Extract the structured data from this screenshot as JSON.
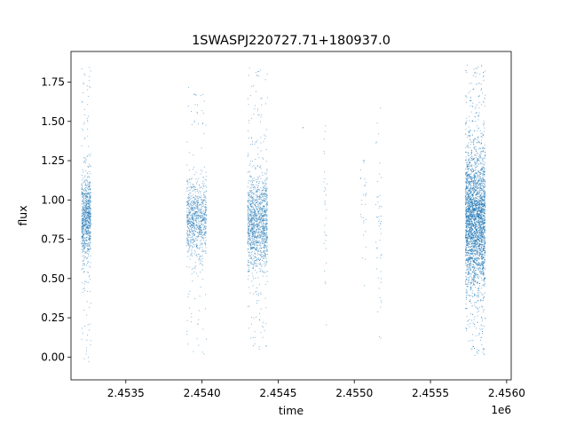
{
  "chart_data": {
    "type": "scatter",
    "title": "1SWASPJ220727.71+180937.0",
    "xlabel": "time",
    "ylabel": "flux",
    "x_offset_label": "1e6",
    "x_tick_labels": [
      "2.4535",
      "2.4540",
      "2.4545",
      "2.4550",
      "2.4555",
      "2.4560"
    ],
    "x_tick_values": [
      2.4535,
      2.454,
      2.4545,
      2.455,
      2.4555,
      2.456
    ],
    "y_tick_labels": [
      "0.00",
      "0.25",
      "0.50",
      "0.75",
      "1.00",
      "1.25",
      "1.50",
      "1.75"
    ],
    "y_tick_values": [
      0.0,
      0.25,
      0.5,
      0.75,
      1.0,
      1.25,
      1.5,
      1.75
    ],
    "xlim": [
      2.45314,
      2.45603
    ],
    "ylim": [
      -0.145,
      1.945
    ],
    "grid": false,
    "marker_color": "#1f77b4",
    "series": [
      {
        "name": "",
        "clusters": [
          {
            "x_min": 2.45321,
            "x_max": 2.45327,
            "y_center": 0.88,
            "y_spread": 0.14,
            "y_min": -0.05,
            "y_max": 1.87,
            "density": 900
          },
          {
            "x_min": 2.4539,
            "x_max": 2.45403,
            "y_center": 0.88,
            "y_spread": 0.12,
            "y_min": 0.0,
            "y_max": 1.72,
            "density": 900
          },
          {
            "x_min": 2.4543,
            "x_max": 2.45443,
            "y_center": 0.86,
            "y_spread": 0.15,
            "y_min": 0.03,
            "y_max": 1.84,
            "density": 1400
          },
          {
            "x_min": 2.45466,
            "x_max": 2.45467,
            "y_center": 1.47,
            "y_spread": 0.01,
            "y_min": 1.46,
            "y_max": 1.48,
            "density": 2
          },
          {
            "x_min": 2.4548,
            "x_max": 2.45482,
            "y_center": 0.9,
            "y_spread": 0.3,
            "y_min": 0.12,
            "y_max": 1.53,
            "density": 30
          },
          {
            "x_min": 2.45504,
            "x_max": 2.45508,
            "y_center": 0.92,
            "y_spread": 0.2,
            "y_min": 0.17,
            "y_max": 1.25,
            "density": 30
          },
          {
            "x_min": 2.45514,
            "x_max": 2.45518,
            "y_center": 0.92,
            "y_spread": 0.3,
            "y_min": 0.12,
            "y_max": 1.69,
            "density": 50
          },
          {
            "x_min": 2.45573,
            "x_max": 2.45586,
            "y_center": 0.87,
            "y_spread": 0.22,
            "y_min": 0.01,
            "y_max": 1.86,
            "density": 3500
          }
        ]
      }
    ]
  }
}
